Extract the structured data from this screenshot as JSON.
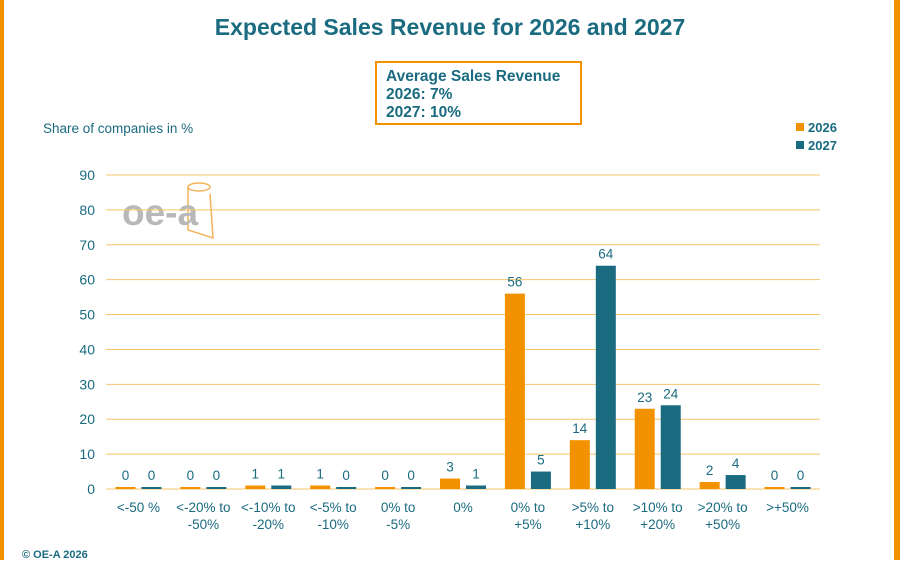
{
  "title": "Expected Sales Revenue for 2026 and 2027",
  "average_box": {
    "heading": "Average Sales Revenue",
    "line_2026": "2026: 7%",
    "line_2027": "2027: 10%"
  },
  "logo_text": "oe-a",
  "copyright": "© OE-A 2026",
  "colors": {
    "series_2026": "#f39200",
    "series_2027": "#1a6b80",
    "grid": "#f5c56b",
    "text": "#1a6b80"
  },
  "chart_data": {
    "type": "bar",
    "title": "Expected Sales Revenue for 2026 and 2027",
    "ylabel": "Share of companies in %",
    "xlabel": "",
    "ylim": [
      0,
      90
    ],
    "yticks": [
      0,
      10,
      20,
      30,
      40,
      50,
      60,
      70,
      80,
      90
    ],
    "grid": true,
    "legend_position": "top-right",
    "categories": [
      [
        "<-50 %"
      ],
      [
        "<-20% to",
        "-50%"
      ],
      [
        "<-10% to",
        "-20%"
      ],
      [
        "<-5% to",
        "-10%"
      ],
      [
        "0% to",
        "-5%"
      ],
      [
        "0%"
      ],
      [
        "0% to",
        "+5%"
      ],
      [
        ">5% to",
        "+10%"
      ],
      [
        ">10% to",
        "+20%"
      ],
      [
        ">20% to",
        "+50%"
      ],
      [
        ">+50%"
      ]
    ],
    "series": [
      {
        "name": "2026",
        "values": [
          0,
          0,
          1,
          1,
          0,
          3,
          56,
          14,
          23,
          2,
          0
        ]
      },
      {
        "name": "2027",
        "values": [
          0,
          0,
          1,
          0,
          0,
          1,
          5,
          64,
          24,
          4,
          0
        ]
      }
    ],
    "data_labels": [
      [
        "0",
        "0",
        "1",
        "1",
        "0",
        "3",
        "56",
        "14",
        "23",
        "2",
        "0"
      ],
      [
        "0",
        "0",
        "1",
        "0",
        "0",
        "1",
        "5",
        "64",
        "24",
        "4",
        "0"
      ]
    ]
  }
}
